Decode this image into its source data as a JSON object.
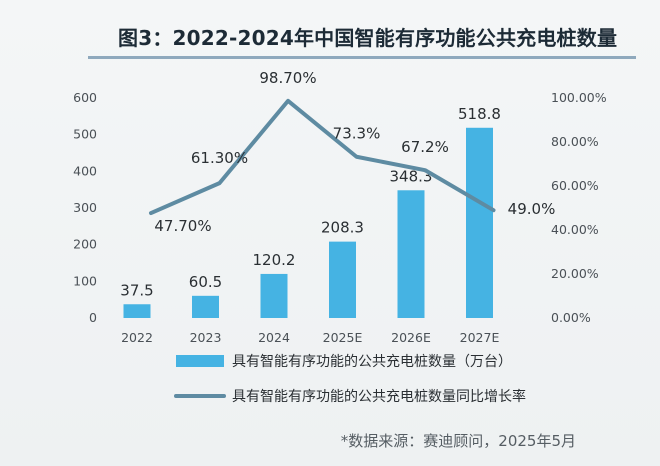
{
  "chart_data": {
    "type": "bar",
    "title": "图3：2022-2024年中国智能有序功能公共充电桩数量",
    "categories": [
      "2022",
      "2023",
      "2024",
      "2025E",
      "2026E",
      "2027E"
    ],
    "series": [
      {
        "name": "具有智能有序功能的公共充电桩数量（万台）",
        "type": "bar",
        "axis": "left",
        "values": [
          37.5,
          60.5,
          120.2,
          208.3,
          348.3,
          518.8
        ],
        "labels": [
          "37.5",
          "60.5",
          "120.2",
          "208.3",
          "348.3",
          "518.8"
        ],
        "color": "#45b3e3"
      },
      {
        "name": "具有智能有序功能的公共充电桩数量同比增长率",
        "type": "line",
        "axis": "right",
        "values": [
          47.7,
          61.3,
          98.7,
          73.3,
          67.2,
          49.0
        ],
        "labels": [
          "47.70%",
          "61.30%",
          "98.70%",
          "73.3%",
          "67.2%",
          "49.0%"
        ],
        "color": "#5e8ba2"
      }
    ],
    "y_left": {
      "range": [
        0,
        600
      ],
      "ticks": [
        "0",
        "100",
        "200",
        "300",
        "400",
        "500",
        "600"
      ]
    },
    "y_right": {
      "range": [
        0,
        100
      ],
      "ticks": [
        "0.00%",
        "20.00%",
        "40.00%",
        "60.00%",
        "80.00%",
        "100.00%"
      ]
    },
    "grid": false,
    "legend": "bottom"
  },
  "source": "*数据来源：赛迪顾问，2025年5月"
}
